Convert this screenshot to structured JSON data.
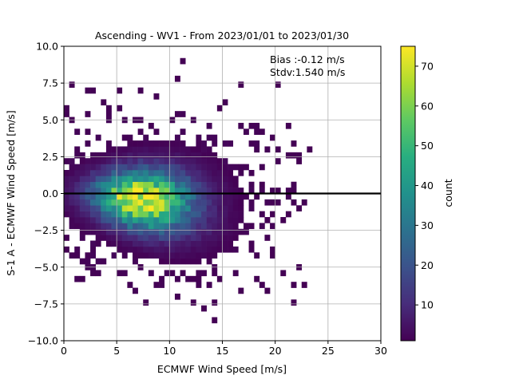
{
  "chart_data": {
    "type": "heatmap",
    "title": "Ascending - WV1 - From 2023/01/01 to 2023/01/30",
    "xlabel": "ECMWF Wind Speed [m/s]",
    "ylabel": "S-1 A - ECMWF Wind Speed [m/s]",
    "xlim": [
      0,
      30
    ],
    "ylim": [
      -10,
      10
    ],
    "xticks": [
      0,
      5,
      10,
      15,
      20,
      25,
      30
    ],
    "yticks": [
      -10.0,
      -7.5,
      -5.0,
      -2.5,
      0.0,
      2.5,
      5.0,
      7.5,
      10.0
    ],
    "xtick_labels": [
      "0",
      "5",
      "10",
      "15",
      "20",
      "25",
      "30"
    ],
    "ytick_labels": [
      "−10.0",
      "−7.5",
      "−5.0",
      "−2.5",
      "0.0",
      "2.5",
      "5.0",
      "7.5",
      "10.0"
    ],
    "grid": true,
    "reference_line_y": 0,
    "annotation": {
      "bias": "Bias :-0.12 m/s",
      "stdv": "Stdv:1.540 m/s"
    },
    "colorbar": {
      "label": "count",
      "colormap": "viridis",
      "range": [
        1,
        75
      ],
      "ticks": [
        10,
        20,
        30,
        40,
        50,
        60,
        70
      ],
      "tick_labels": [
        "10",
        "20",
        "30",
        "40",
        "50",
        "60",
        "70"
      ]
    },
    "bin_size": {
      "x": 0.5,
      "y": 0.4
    },
    "peak": {
      "x": 7.2,
      "y": -0.4,
      "count": 75
    }
  }
}
